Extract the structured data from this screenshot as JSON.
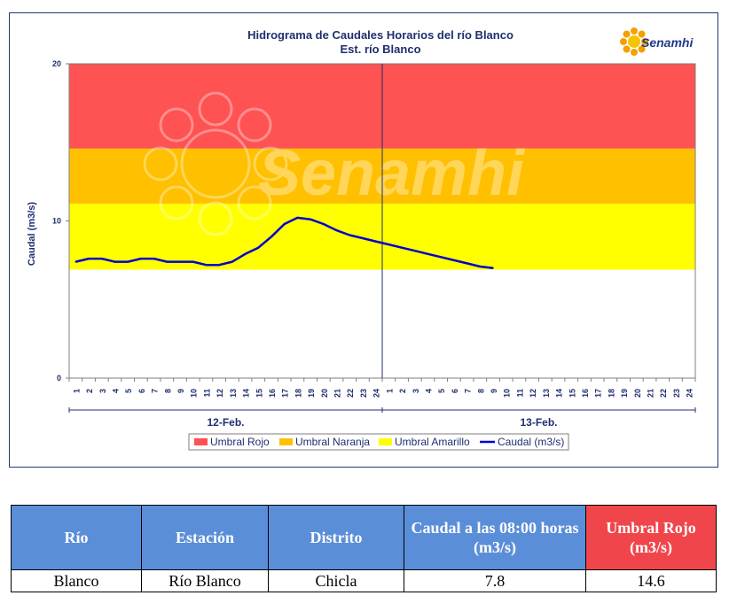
{
  "chart_data": {
    "type": "line",
    "title": "Hidrograma de Caudales Horarios del río Blanco",
    "subtitle": "Est. río Blanco",
    "ylabel": "Caudal  (m3/s)",
    "ylim": [
      0,
      20
    ],
    "yticks": [
      "0",
      "10",
      "20"
    ],
    "hour_ticks": [
      "1",
      "2",
      "3",
      "4",
      "5",
      "6",
      "7",
      "8",
      "9",
      "10",
      "11",
      "12",
      "13",
      "14",
      "15",
      "16",
      "17",
      "18",
      "19",
      "20",
      "21",
      "22",
      "23",
      "24"
    ],
    "date_labels": [
      "12-Feb.",
      "13-Feb."
    ],
    "bands": [
      {
        "name": "Umbral Rojo",
        "from": 14.6,
        "to": 20,
        "color": "#ff5252"
      },
      {
        "name": "Umbral Naranja",
        "from": 11.1,
        "to": 14.6,
        "color": "#ffc000"
      },
      {
        "name": "Umbral Amarillo",
        "from": 6.9,
        "to": 11.1,
        "color": "#ffff00"
      }
    ],
    "series": [
      {
        "name": "Caudal (m3/s)",
        "color": "#0000cc",
        "x": [
          1,
          2,
          3,
          4,
          5,
          6,
          7,
          8,
          9,
          10,
          11,
          12,
          13,
          14,
          15,
          16,
          17,
          18,
          19,
          20,
          21,
          22,
          23,
          24,
          25,
          26,
          27,
          28,
          29,
          30,
          31,
          32,
          33
        ],
        "values": [
          7.4,
          7.6,
          7.6,
          7.4,
          7.4,
          7.6,
          7.6,
          7.4,
          7.4,
          7.4,
          7.2,
          7.2,
          7.4,
          7.9,
          8.3,
          9.0,
          9.8,
          10.2,
          10.1,
          9.8,
          9.4,
          9.1,
          8.9,
          8.7,
          8.5,
          8.3,
          8.1,
          7.9,
          7.7,
          7.5,
          7.3,
          7.1,
          7.0
        ]
      }
    ],
    "legend": [
      "Umbral Rojo",
      "Umbral Naranja",
      "Umbral Amarillo",
      "Caudal (m3/s)"
    ],
    "legend_position": "bottom",
    "watermark": "Senamhi"
  },
  "logo": {
    "text": "Senamhi"
  },
  "table": {
    "headers": [
      "Río",
      "Estación",
      "Distrito",
      "Caudal a las 08:00 horas (m3/s)",
      "Umbral Rojo (m3/s)"
    ],
    "row": [
      "Blanco",
      "Río Blanco",
      "Chicla",
      "7.8",
      "14.6"
    ]
  }
}
